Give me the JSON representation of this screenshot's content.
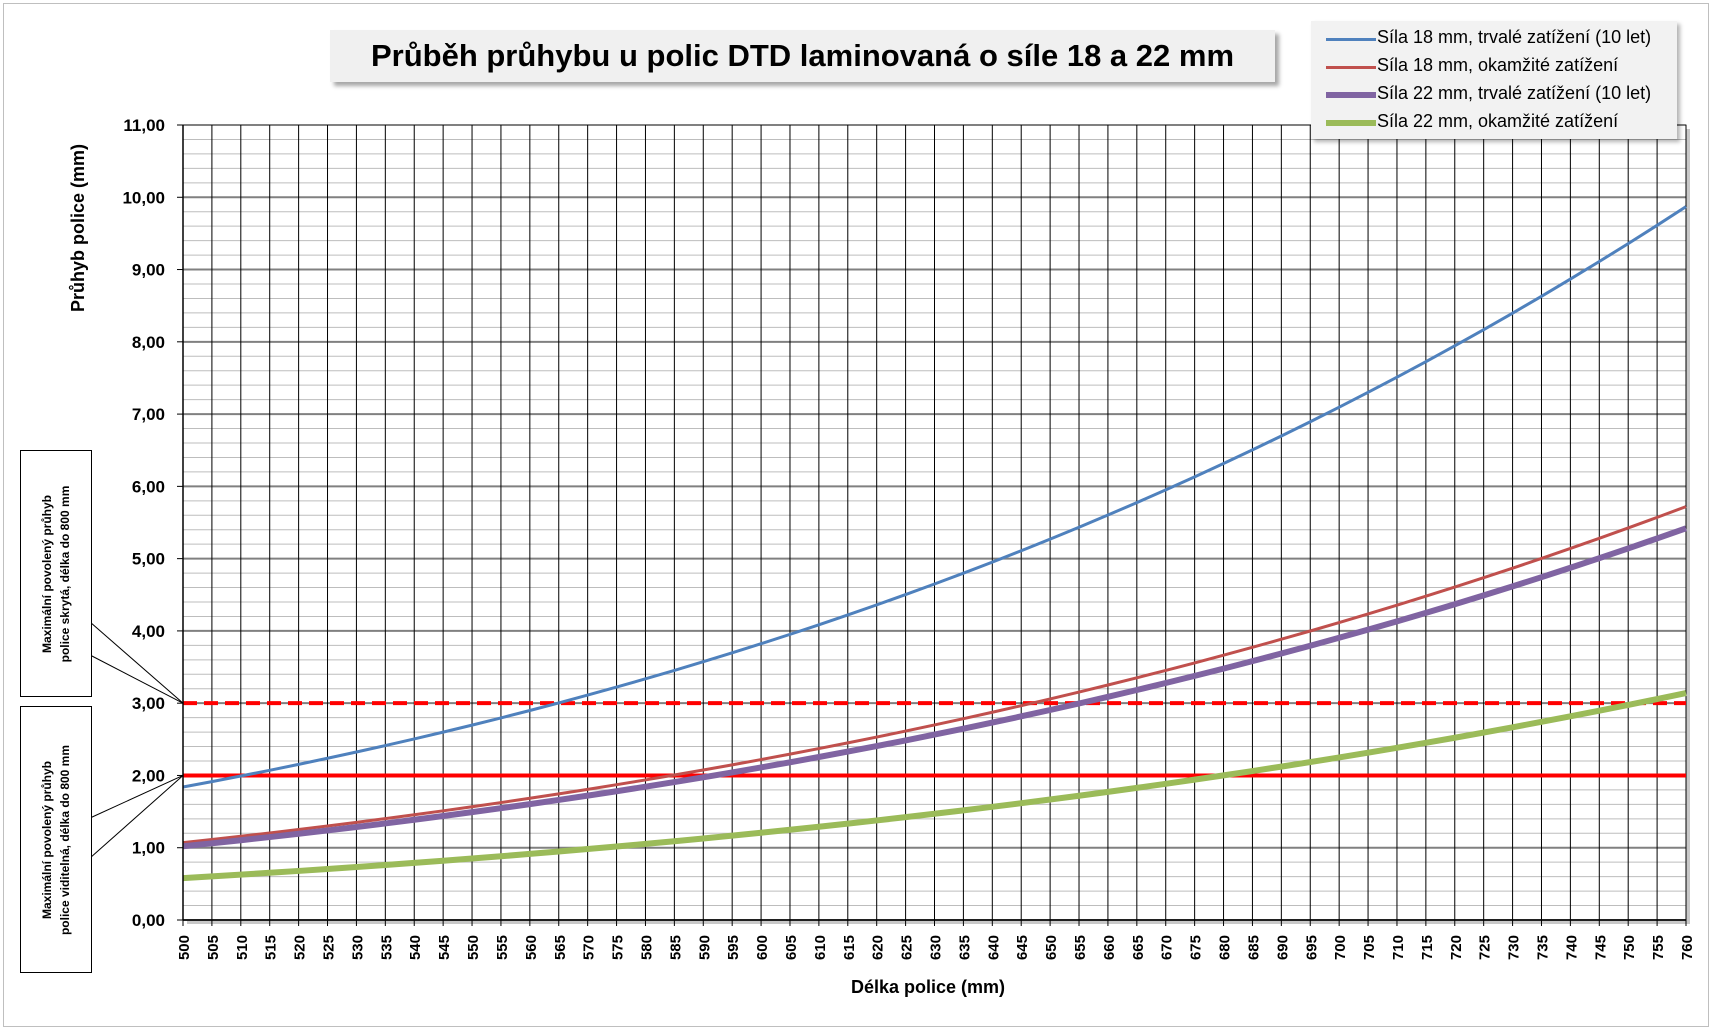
{
  "chart_data": {
    "type": "line",
    "title": "Průběh průhybu u polic DTD laminovaná o síle 18 a 22 mm",
    "xlabel": "Délka police (mm)",
    "ylabel": "Průhyb police (mm)",
    "xlim": [
      500,
      760
    ],
    "ylim": [
      0,
      11
    ],
    "x_tick_step": 5,
    "y_tick_labels": [
      "0,00",
      "1,00",
      "2,00",
      "3,00",
      "4,00",
      "5,00",
      "6,00",
      "7,00",
      "8,00",
      "9,00",
      "10,00",
      "11,00"
    ],
    "grid": true,
    "legend_position": "top-right",
    "series": [
      {
        "name": "Síla 18 mm, trvalé zatížení (10 let)",
        "color": "#4f81bd",
        "width": 3,
        "exp": 4,
        "y_at_500": 1.84,
        "y_at_760": 9.87
      },
      {
        "name": "Síla 18 mm, okamžité zatížení",
        "color": "#c0504d",
        "width": 3,
        "exp": 4,
        "y_at_500": 1.07,
        "y_at_760": 5.72
      },
      {
        "name": "Síla 22 mm, trvalé zatížení (10 let)",
        "color": "#8064a2",
        "width": 6,
        "exp": 4,
        "y_at_500": 1.02,
        "y_at_760": 5.42
      },
      {
        "name": "Síla 22 mm, okamžité zatížení",
        "color": "#9bbb59",
        "width": 6,
        "exp": 3.9,
        "y_at_500": 0.58,
        "y_at_760": 3.14
      }
    ],
    "reference_lines": [
      {
        "y": 3.0,
        "color": "#ff0000",
        "style": "dashed"
      },
      {
        "y": 2.0,
        "color": "#ff0000",
        "style": "solid"
      }
    ],
    "annotations": [
      {
        "text": [
          "Maximální povolený průhyb",
          "police skrytá,  délka do 800 mm"
        ],
        "points_to_y": 3.0
      },
      {
        "text": [
          "Maximální povolený průhyb",
          "police viditelná,  délka do 800 mm"
        ],
        "points_to_y": 2.0
      }
    ]
  }
}
